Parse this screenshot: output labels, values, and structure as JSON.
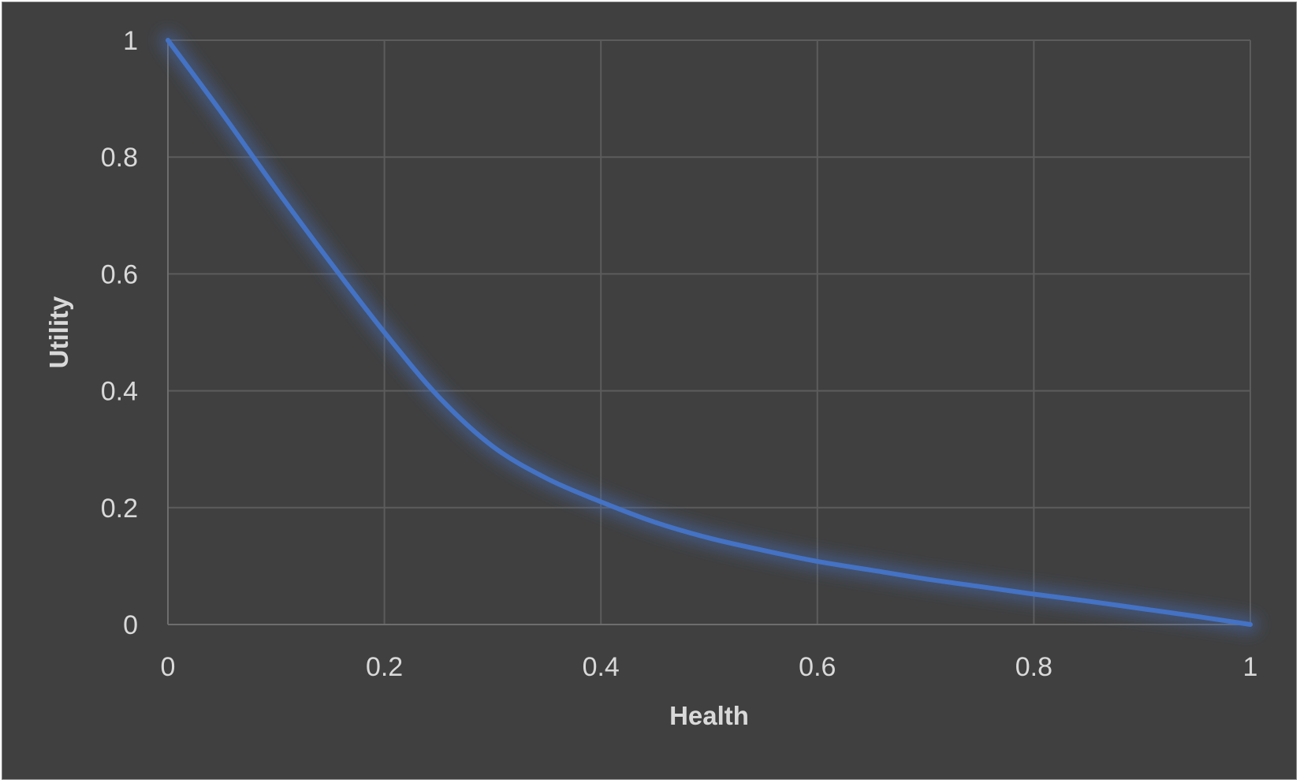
{
  "chart_data": {
    "type": "line",
    "title": "",
    "xlabel": "Health",
    "ylabel": "Utility",
    "xlim": [
      0,
      1
    ],
    "ylim": [
      0,
      1
    ],
    "x_ticks": [
      "0",
      "0.2",
      "0.4",
      "0.6",
      "0.8",
      "1"
    ],
    "y_ticks": [
      "0",
      "0.2",
      "0.4",
      "0.6",
      "0.8",
      "1"
    ],
    "grid": true,
    "legend": "none",
    "colors": {
      "background": "#404040",
      "series": "#4472c4",
      "grid": "#5c5c5c",
      "text": "#d9d9d9"
    },
    "series": [
      {
        "name": "Utility",
        "x": [
          0,
          0.05,
          0.1,
          0.15,
          0.2,
          0.25,
          0.3,
          0.35,
          0.4,
          0.45,
          0.5,
          0.55,
          0.6,
          0.65,
          0.7,
          0.75,
          0.8,
          0.85,
          0.9,
          0.95,
          1
        ],
        "values": [
          1,
          0.875,
          0.745,
          0.62,
          0.5,
          0.39,
          0.305,
          0.25,
          0.21,
          0.175,
          0.148,
          0.127,
          0.108,
          0.093,
          0.078,
          0.065,
          0.052,
          0.04,
          0.027,
          0.014,
          0
        ]
      }
    ]
  }
}
